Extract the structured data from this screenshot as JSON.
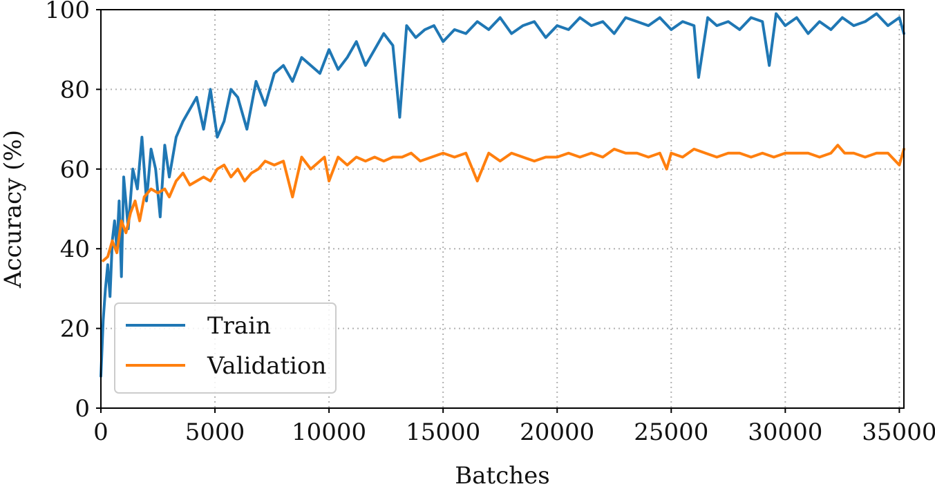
{
  "chart_data": {
    "type": "line",
    "xlabel": "Batches",
    "ylabel": "Accuracy (%)",
    "xlim": [
      0,
      35200
    ],
    "ylim": [
      0,
      100
    ],
    "xticks": [
      0,
      5000,
      10000,
      15000,
      20000,
      25000,
      30000,
      35000
    ],
    "yticks": [
      0,
      20,
      40,
      60,
      80,
      100
    ],
    "grid": true,
    "legend_position": "lower-left",
    "series": [
      {
        "name": "Train",
        "color": "#1f77b4",
        "x": [
          0,
          100,
          200,
          300,
          400,
          500,
          600,
          700,
          800,
          900,
          1000,
          1200,
          1400,
          1600,
          1800,
          2000,
          2200,
          2400,
          2600,
          2800,
          3000,
          3300,
          3600,
          3900,
          4200,
          4500,
          4800,
          5100,
          5400,
          5700,
          6000,
          6400,
          6800,
          7200,
          7600,
          8000,
          8400,
          8800,
          9200,
          9600,
          10000,
          10400,
          10800,
          11200,
          11600,
          12000,
          12400,
          12800,
          13100,
          13400,
          13800,
          14200,
          14600,
          15000,
          15500,
          16000,
          16500,
          17000,
          17500,
          18000,
          18500,
          19000,
          19500,
          20000,
          20500,
          21000,
          21500,
          22000,
          22500,
          23000,
          23500,
          24000,
          24500,
          25000,
          25500,
          26000,
          26200,
          26600,
          27000,
          27500,
          28000,
          28500,
          29000,
          29300,
          29600,
          30000,
          30500,
          31000,
          31500,
          32000,
          32500,
          33000,
          33500,
          34000,
          34500,
          35000,
          35200
        ],
        "y": [
          8,
          22,
          30,
          36,
          28,
          42,
          47,
          40,
          52,
          33,
          58,
          45,
          60,
          55,
          68,
          52,
          65,
          60,
          48,
          66,
          58,
          68,
          72,
          75,
          78,
          70,
          80,
          68,
          72,
          80,
          78,
          70,
          82,
          76,
          84,
          86,
          82,
          88,
          86,
          84,
          90,
          85,
          88,
          92,
          86,
          90,
          94,
          91,
          73,
          96,
          93,
          95,
          96,
          92,
          95,
          94,
          97,
          95,
          98,
          94,
          96,
          97,
          93,
          96,
          95,
          98,
          96,
          97,
          94,
          98,
          97,
          96,
          98,
          95,
          97,
          96,
          83,
          98,
          96,
          97,
          95,
          98,
          97,
          86,
          99,
          96,
          98,
          94,
          97,
          95,
          98,
          96,
          97,
          99,
          96,
          98,
          94
        ]
      },
      {
        "name": "Validation",
        "color": "#ff7f0e",
        "x": [
          100,
          300,
          500,
          700,
          900,
          1100,
          1300,
          1500,
          1700,
          1900,
          2200,
          2500,
          2800,
          3000,
          3300,
          3600,
          3900,
          4200,
          4500,
          4800,
          5100,
          5400,
          5700,
          6000,
          6300,
          6600,
          6900,
          7200,
          7600,
          8000,
          8400,
          8800,
          9200,
          9600,
          9800,
          10000,
          10400,
          10800,
          11200,
          11600,
          12000,
          12400,
          12800,
          13200,
          13600,
          14000,
          14500,
          15000,
          15500,
          16000,
          16500,
          17000,
          17500,
          18000,
          18500,
          19000,
          19500,
          20000,
          20500,
          21000,
          21500,
          22000,
          22500,
          23000,
          23500,
          24000,
          24500,
          24800,
          25000,
          25500,
          26000,
          26500,
          27000,
          27500,
          28000,
          28500,
          29000,
          29500,
          30000,
          30500,
          31000,
          31500,
          32000,
          32300,
          32600,
          33000,
          33500,
          34000,
          34500,
          35000,
          35200
        ],
        "y": [
          37,
          38,
          42,
          39,
          47,
          44,
          49,
          52,
          47,
          53,
          55,
          54,
          55,
          53,
          57,
          59,
          56,
          57,
          58,
          57,
          60,
          61,
          58,
          60,
          57,
          59,
          60,
          62,
          61,
          62,
          53,
          63,
          60,
          62,
          63,
          57,
          63,
          61,
          63,
          62,
          63,
          62,
          63,
          63,
          64,
          62,
          63,
          64,
          63,
          64,
          57,
          64,
          62,
          64,
          63,
          62,
          63,
          63,
          64,
          63,
          64,
          63,
          65,
          64,
          64,
          63,
          64,
          60,
          64,
          63,
          65,
          64,
          63,
          64,
          64,
          63,
          64,
          63,
          64,
          64,
          64,
          63,
          64,
          66,
          64,
          64,
          63,
          64,
          64,
          61,
          65
        ]
      }
    ]
  }
}
